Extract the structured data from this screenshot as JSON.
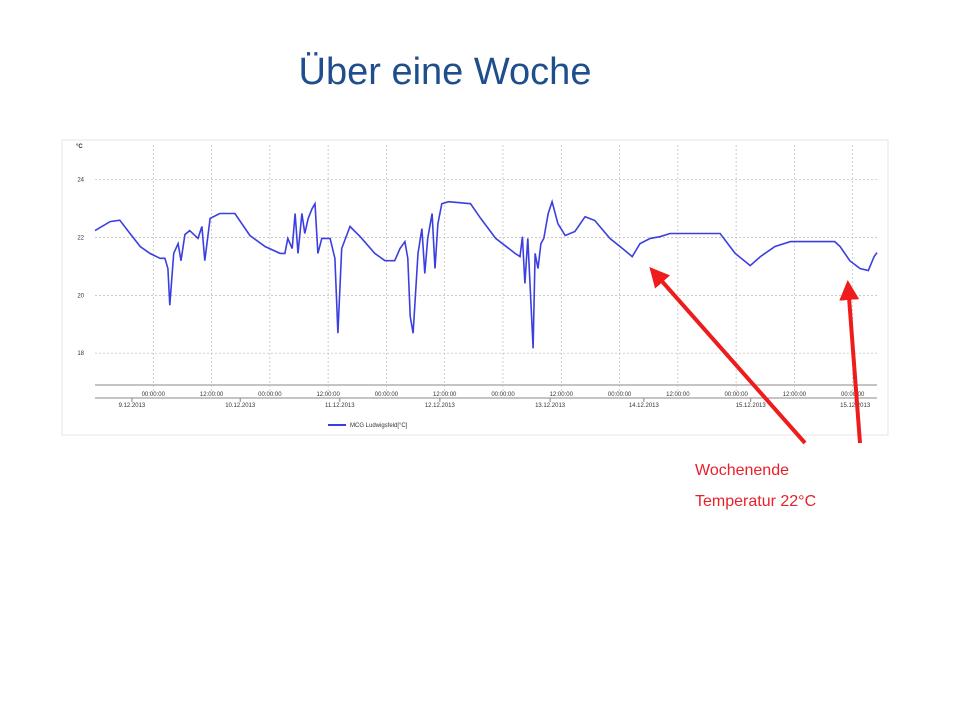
{
  "slide_title": "Über eine Woche",
  "annotation": {
    "line1": "Wochenende",
    "line2": "Temperatur 22°C"
  },
  "chart_data": {
    "type": "line",
    "y_label": "°C",
    "x": [
      0,
      3.1,
      5.1,
      7.2,
      9.3,
      11.3,
      13.4,
      14.4,
      15.0,
      15.4,
      16.2,
      17.1,
      17.7,
      18.5,
      19.5,
      21.2,
      22.0,
      22.6,
      23.7,
      25.7,
      28.8,
      31.9,
      35.0,
      38.1,
      39.1,
      39.7,
      40.6,
      41.2,
      41.8,
      42.6,
      43.2,
      43.9,
      44.7,
      45.3,
      45.9,
      46.7,
      48.4,
      49.4,
      50.0,
      50.8,
      52.5,
      54.6,
      57.6,
      59.7,
      61.7,
      62.8,
      63.8,
      64.4,
      64.9,
      65.5,
      66.5,
      67.3,
      67.9,
      68.5,
      69.4,
      70.0,
      70.6,
      71.4,
      72.8,
      77.3,
      79.4,
      82.5,
      86.5,
      87.5,
      88.0,
      88.5,
      89.1,
      89.8,
      90.2,
      90.6,
      91.2,
      91.8,
      92.4,
      93.3,
      94.1,
      95.3,
      96.8,
      98.8,
      100.9,
      102.9,
      106.0,
      109.1,
      110.6,
      112.2,
      114.3,
      116.3,
      118.4,
      122.5,
      128.7,
      131.8,
      134.9,
      137.0,
      140.0,
      143.2,
      145.2,
      152.3,
      153.4,
      155.4,
      157.5,
      159.2,
      160.4,
      161.0
    ],
    "series": [
      {
        "name": "MCG Ludwigsfeld[°C]",
        "color": "#3c3fe0",
        "values": [
          22.24,
          22.55,
          22.6,
          22.14,
          21.69,
          21.45,
          21.28,
          21.28,
          20.93,
          19.66,
          21.45,
          21.79,
          21.2,
          22.1,
          22.24,
          21.97,
          22.38,
          21.2,
          22.66,
          22.83,
          22.83,
          22.07,
          21.69,
          21.45,
          21.45,
          21.97,
          21.62,
          22.83,
          21.45,
          22.83,
          22.14,
          22.66,
          23.0,
          23.17,
          21.45,
          21.97,
          21.97,
          21.28,
          18.69,
          21.62,
          22.38,
          22.03,
          21.45,
          21.2,
          21.2,
          21.62,
          21.86,
          21.28,
          19.28,
          18.69,
          21.45,
          22.31,
          20.76,
          21.97,
          22.83,
          20.93,
          22.48,
          23.17,
          23.24,
          23.17,
          22.66,
          21.97,
          21.45,
          21.34,
          22.03,
          20.41,
          21.97,
          19.55,
          18.17,
          21.45,
          20.93,
          21.79,
          21.97,
          22.83,
          23.24,
          22.48,
          22.07,
          22.21,
          22.72,
          22.59,
          21.97,
          21.55,
          21.34,
          21.79,
          21.97,
          22.03,
          22.14,
          22.14,
          22.14,
          21.45,
          21.03,
          21.34,
          21.69,
          21.86,
          21.86,
          21.86,
          21.69,
          21.2,
          20.93,
          20.86,
          21.34,
          21.48
        ]
      }
    ],
    "xlim": [
      0,
      161
    ],
    "ylim": [
      16.9,
      25.2
    ],
    "yticks": [
      18,
      20,
      22,
      24
    ],
    "xticks": [
      {
        "value": 12,
        "label": "00:00:00"
      },
      {
        "value": 24,
        "label": "12:00:00"
      },
      {
        "value": 36,
        "label": "00:00:00"
      },
      {
        "value": 48,
        "label": "12:00:00"
      },
      {
        "value": 60,
        "label": "00:00:00"
      },
      {
        "value": 72,
        "label": "12:00:00"
      },
      {
        "value": 84,
        "label": "00:00:00"
      },
      {
        "value": 96,
        "label": "12:00:00"
      },
      {
        "value": 108,
        "label": "00:00:00"
      },
      {
        "value": 120,
        "label": "12:00:00"
      },
      {
        "value": 132,
        "label": "00:00:00"
      },
      {
        "value": 144,
        "label": "12:00:00"
      },
      {
        "value": 156,
        "label": "00:00:00"
      }
    ],
    "date_ticks": [
      {
        "value": 7.6,
        "label": "9.12.2013"
      },
      {
        "value": 29.9,
        "label": "10.12.2013"
      },
      {
        "value": 50.4,
        "label": "11.12.2013"
      },
      {
        "value": 71,
        "label": "12.12.2013"
      },
      {
        "value": 93.7,
        "label": "13.12.2013"
      },
      {
        "value": 113,
        "label": "14.12.2013"
      },
      {
        "value": 135,
        "label": "15.12.2013"
      },
      {
        "value": 156.5,
        "label": "15.12.2013"
      }
    ],
    "grid": true
  }
}
